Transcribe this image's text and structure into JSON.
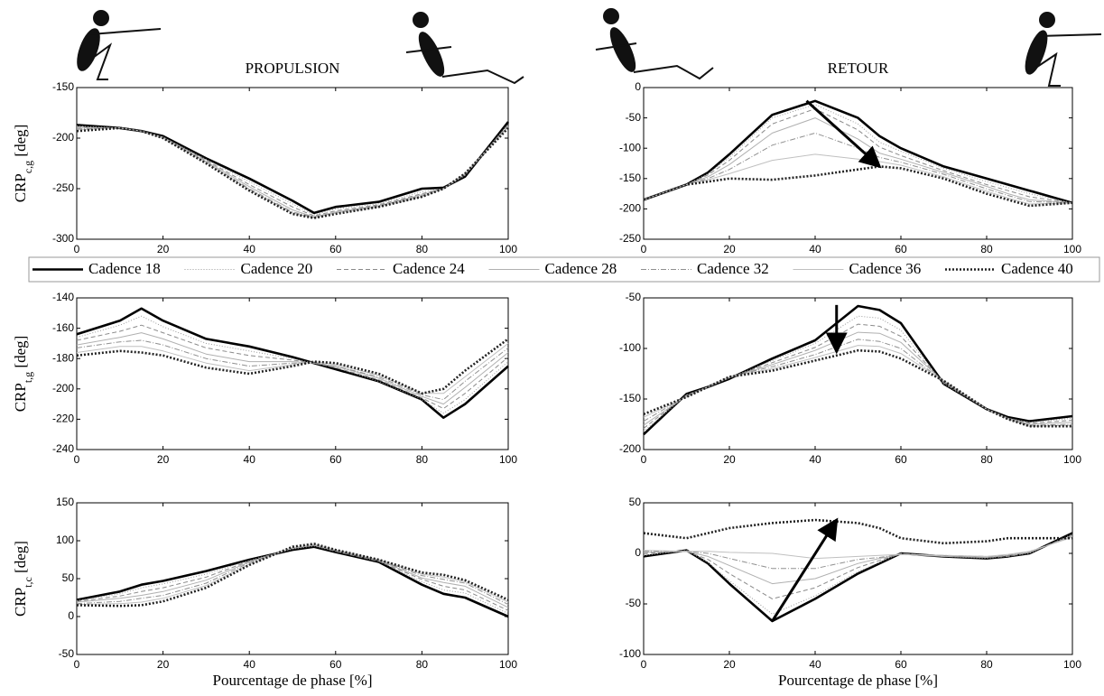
{
  "legend": [
    {
      "name": "Cadence 18",
      "color": "#000000",
      "width": 2.6,
      "dash": "none"
    },
    {
      "name": "Cadence 20",
      "color": "#9a9a9a",
      "width": 1,
      "dash": "1,2"
    },
    {
      "name": "Cadence 24",
      "color": "#8a8a8a",
      "width": 1,
      "dash": "5,3"
    },
    {
      "name": "Cadence 28",
      "color": "#b0b0b0",
      "width": 1,
      "dash": "none"
    },
    {
      "name": "Cadence 32",
      "color": "#909090",
      "width": 1,
      "dash": "6,2,1,2"
    },
    {
      "name": "Cadence 36",
      "color": "#c0c0c0",
      "width": 1,
      "dash": "none"
    },
    {
      "name": "Cadence 40",
      "color": "#222222",
      "width": 2.6,
      "dash": "2,2"
    }
  ],
  "chart_data": [
    {
      "type": "line",
      "title": "PROPULSION",
      "ylabel": {
        "main": "CRP",
        "sub": "c,g",
        "unit": " [deg]"
      },
      "x": [
        0,
        10,
        15,
        20,
        30,
        40,
        50,
        55,
        60,
        70,
        80,
        85,
        90,
        100
      ],
      "xlim": [
        0,
        100
      ],
      "xticks": [
        0,
        20,
        40,
        60,
        80,
        100
      ],
      "ylim": [
        -300,
        -150
      ],
      "yticks": [
        -300,
        -250,
        -200,
        -150
      ],
      "series": [
        {
          "values": [
            -187,
            -190,
            -193,
            -198,
            -220,
            -240,
            -262,
            -274,
            -268,
            -263,
            -250,
            -249,
            -238,
            -184
          ]
        },
        {
          "values": [
            -188,
            -190,
            -193,
            -199,
            -221,
            -243,
            -265,
            -276,
            -270,
            -265,
            -253,
            -250,
            -237,
            -186
          ]
        },
        {
          "values": [
            -189,
            -190,
            -193,
            -199,
            -222,
            -246,
            -268,
            -277,
            -272,
            -266,
            -255,
            -250,
            -236,
            -187
          ]
        },
        {
          "values": [
            -190,
            -190,
            -193,
            -199,
            -223,
            -248,
            -271,
            -278,
            -273,
            -267,
            -256,
            -250,
            -236,
            -188
          ]
        },
        {
          "values": [
            -191,
            -190,
            -193,
            -200,
            -224,
            -250,
            -273,
            -278,
            -274,
            -267,
            -257,
            -250,
            -235,
            -189
          ]
        },
        {
          "values": [
            -192,
            -190,
            -193,
            -200,
            -224,
            -251,
            -274,
            -279,
            -274,
            -268,
            -258,
            -250,
            -235,
            -189
          ]
        },
        {
          "values": [
            -193,
            -190,
            -193,
            -200,
            -225,
            -252,
            -275,
            -279,
            -275,
            -268,
            -258,
            -250,
            -235,
            -190
          ]
        }
      ]
    },
    {
      "type": "line",
      "title": "RETOUR",
      "x": [
        0,
        10,
        15,
        20,
        30,
        40,
        50,
        55,
        60,
        70,
        80,
        85,
        90,
        100
      ],
      "xlim": [
        0,
        100
      ],
      "xticks": [
        0,
        20,
        40,
        60,
        80,
        100
      ],
      "ylim": [
        -250,
        0
      ],
      "yticks": [
        -250,
        -200,
        -150,
        -100,
        -50,
        0
      ],
      "arrow": {
        "from": [
          38,
          -22
        ],
        "to": [
          55,
          -130
        ]
      },
      "series": [
        {
          "values": [
            -185,
            -160,
            -140,
            -110,
            -45,
            -22,
            -50,
            -80,
            -100,
            -130,
            -150,
            -160,
            -170,
            -190
          ]
        },
        {
          "values": [
            -185,
            -160,
            -142,
            -115,
            -50,
            -28,
            -60,
            -90,
            -105,
            -133,
            -155,
            -165,
            -175,
            -190
          ]
        },
        {
          "values": [
            -185,
            -160,
            -144,
            -120,
            -60,
            -35,
            -70,
            -98,
            -112,
            -137,
            -160,
            -170,
            -180,
            -190
          ]
        },
        {
          "values": [
            -185,
            -160,
            -147,
            -127,
            -75,
            -50,
            -85,
            -108,
            -118,
            -140,
            -163,
            -175,
            -185,
            -190
          ]
        },
        {
          "values": [
            -185,
            -160,
            -150,
            -135,
            -95,
            -75,
            -100,
            -115,
            -123,
            -143,
            -167,
            -178,
            -188,
            -190
          ]
        },
        {
          "values": [
            -185,
            -160,
            -152,
            -142,
            -120,
            -110,
            -118,
            -122,
            -128,
            -147,
            -171,
            -182,
            -192,
            -190
          ]
        },
        {
          "values": [
            -185,
            -160,
            -155,
            -150,
            -152,
            -145,
            -135,
            -130,
            -133,
            -150,
            -175,
            -185,
            -195,
            -190
          ]
        }
      ]
    },
    {
      "type": "line",
      "ylabel": {
        "main": "CRP",
        "sub": "t,g",
        "unit": " [deg]"
      },
      "x": [
        0,
        10,
        15,
        20,
        30,
        40,
        50,
        55,
        60,
        70,
        80,
        85,
        90,
        100
      ],
      "xlim": [
        0,
        100
      ],
      "xticks": [
        0,
        20,
        40,
        60,
        80,
        100
      ],
      "ylim": [
        -240,
        -140
      ],
      "yticks": [
        -240,
        -220,
        -200,
        -180,
        -160,
        -140
      ],
      "series": [
        {
          "values": [
            -164,
            -155,
            -147,
            -155,
            -167,
            -172,
            -179,
            -183,
            -187,
            -195,
            -207,
            -219,
            -210,
            -185
          ]
        },
        {
          "values": [
            -166,
            -158,
            -152,
            -159,
            -170,
            -175,
            -180,
            -183,
            -186,
            -195,
            -207,
            -216,
            -207,
            -182
          ]
        },
        {
          "values": [
            -168,
            -162,
            -158,
            -163,
            -173,
            -178,
            -181,
            -183,
            -186,
            -194,
            -206,
            -213,
            -203,
            -179
          ]
        },
        {
          "values": [
            -171,
            -166,
            -163,
            -167,
            -177,
            -182,
            -182,
            -183,
            -185,
            -193,
            -205,
            -210,
            -199,
            -176
          ]
        },
        {
          "values": [
            -173,
            -169,
            -168,
            -171,
            -180,
            -185,
            -183,
            -183,
            -185,
            -192,
            -204,
            -207,
            -195,
            -173
          ]
        },
        {
          "values": [
            -176,
            -172,
            -172,
            -175,
            -183,
            -188,
            -184,
            -182,
            -184,
            -191,
            -203,
            -203,
            -192,
            -170
          ]
        },
        {
          "values": [
            -178,
            -175,
            -176,
            -178,
            -186,
            -190,
            -185,
            -182,
            -183,
            -190,
            -203,
            -200,
            -188,
            -167
          ]
        }
      ]
    },
    {
      "type": "line",
      "x": [
        0,
        10,
        15,
        20,
        30,
        40,
        50,
        55,
        60,
        70,
        80,
        85,
        90,
        100
      ],
      "xlim": [
        0,
        100
      ],
      "xticks": [
        0,
        20,
        40,
        60,
        80,
        100
      ],
      "ylim": [
        -200,
        -50
      ],
      "yticks": [
        -200,
        -150,
        -100,
        -50
      ],
      "arrow": {
        "from": [
          45,
          -57
        ],
        "to": [
          45,
          -103
        ]
      },
      "series": [
        {
          "values": [
            -185,
            -145,
            -138,
            -130,
            -110,
            -92,
            -58,
            -62,
            -75,
            -135,
            -160,
            -168,
            -172,
            -167
          ]
        },
        {
          "values": [
            -182,
            -146,
            -138,
            -129,
            -112,
            -95,
            -68,
            -70,
            -82,
            -135,
            -160,
            -169,
            -173,
            -169
          ]
        },
        {
          "values": [
            -179,
            -146,
            -138,
            -129,
            -114,
            -99,
            -76,
            -78,
            -88,
            -134,
            -160,
            -169,
            -174,
            -171
          ]
        },
        {
          "values": [
            -176,
            -147,
            -138,
            -129,
            -116,
            -102,
            -84,
            -85,
            -94,
            -133,
            -160,
            -169,
            -175,
            -173
          ]
        },
        {
          "values": [
            -172,
            -147,
            -138,
            -128,
            -118,
            -106,
            -91,
            -93,
            -100,
            -133,
            -160,
            -170,
            -176,
            -175
          ]
        },
        {
          "values": [
            -168,
            -148,
            -138,
            -128,
            -120,
            -109,
            -97,
            -98,
            -105,
            -132,
            -160,
            -170,
            -177,
            -176
          ]
        },
        {
          "values": [
            -165,
            -148,
            -138,
            -128,
            -122,
            -112,
            -102,
            -103,
            -110,
            -132,
            -160,
            -170,
            -177,
            -177
          ]
        }
      ]
    },
    {
      "type": "line",
      "ylabel": {
        "main": "CRP",
        "sub": "t,c",
        "unit": " [deg]"
      },
      "xlabel": "Pourcentage de phase [%]",
      "x": [
        0,
        10,
        15,
        20,
        30,
        40,
        50,
        55,
        60,
        70,
        80,
        85,
        90,
        100
      ],
      "xlim": [
        0,
        100
      ],
      "xticks": [
        0,
        20,
        40,
        60,
        80,
        100
      ],
      "ylim": [
        -50,
        150
      ],
      "yticks": [
        -50,
        0,
        50,
        100,
        150
      ],
      "series": [
        {
          "values": [
            22,
            33,
            42,
            47,
            60,
            75,
            88,
            92,
            85,
            72,
            42,
            30,
            25,
            0
          ]
        },
        {
          "values": [
            21,
            30,
            38,
            43,
            56,
            74,
            89,
            93,
            86,
            73,
            46,
            35,
            31,
            4
          ]
        },
        {
          "values": [
            20,
            27,
            33,
            38,
            52,
            73,
            90,
            94,
            86,
            73,
            49,
            40,
            35,
            8
          ]
        },
        {
          "values": [
            19,
            24,
            28,
            33,
            48,
            72,
            90,
            94,
            87,
            74,
            51,
            45,
            40,
            12
          ]
        },
        {
          "values": [
            17,
            20,
            24,
            28,
            44,
            71,
            91,
            95,
            87,
            74,
            54,
            49,
            44,
            16
          ]
        },
        {
          "values": [
            16,
            17,
            19,
            24,
            41,
            69,
            91,
            95,
            88,
            75,
            56,
            52,
            46,
            19
          ]
        },
        {
          "values": [
            15,
            14,
            15,
            20,
            38,
            68,
            92,
            96,
            88,
            75,
            58,
            55,
            48,
            22
          ]
        }
      ]
    },
    {
      "type": "line",
      "xlabel": "Pourcentage de phase [%]",
      "x": [
        0,
        10,
        15,
        20,
        30,
        40,
        50,
        55,
        60,
        70,
        80,
        85,
        90,
        100
      ],
      "xlim": [
        0,
        100
      ],
      "xticks": [
        0,
        20,
        40,
        60,
        80,
        100
      ],
      "ylim": [
        -100,
        50
      ],
      "yticks": [
        -100,
        -50,
        0,
        50
      ],
      "arrow": {
        "from": [
          30,
          -67
        ],
        "to": [
          45,
          33
        ]
      },
      "series": [
        {
          "values": [
            -3,
            3,
            -10,
            -30,
            -67,
            -45,
            -20,
            -10,
            0,
            -3,
            -5,
            -3,
            0,
            20
          ]
        },
        {
          "values": [
            -2,
            3,
            -9,
            -27,
            -60,
            -42,
            -18,
            -9,
            0,
            -3,
            -5,
            -3,
            0,
            19
          ]
        },
        {
          "values": [
            0,
            2,
            -6,
            -20,
            -45,
            -34,
            -14,
            -7,
            0,
            -3,
            -4,
            -3,
            1,
            18
          ]
        },
        {
          "values": [
            1,
            2,
            -3,
            -12,
            -30,
            -25,
            -10,
            -5,
            -1,
            -3,
            -4,
            -2,
            1,
            17
          ]
        },
        {
          "values": [
            2,
            2,
            0,
            -5,
            -15,
            -15,
            -6,
            -4,
            -1,
            -2,
            -3,
            -2,
            2,
            16
          ]
        },
        {
          "values": [
            3,
            2,
            2,
            1,
            0,
            -5,
            -3,
            -2,
            -1,
            -2,
            -3,
            -1,
            2,
            16
          ]
        },
        {
          "values": [
            20,
            15,
            20,
            25,
            30,
            33,
            30,
            25,
            15,
            10,
            12,
            15,
            15,
            15
          ]
        }
      ]
    }
  ]
}
